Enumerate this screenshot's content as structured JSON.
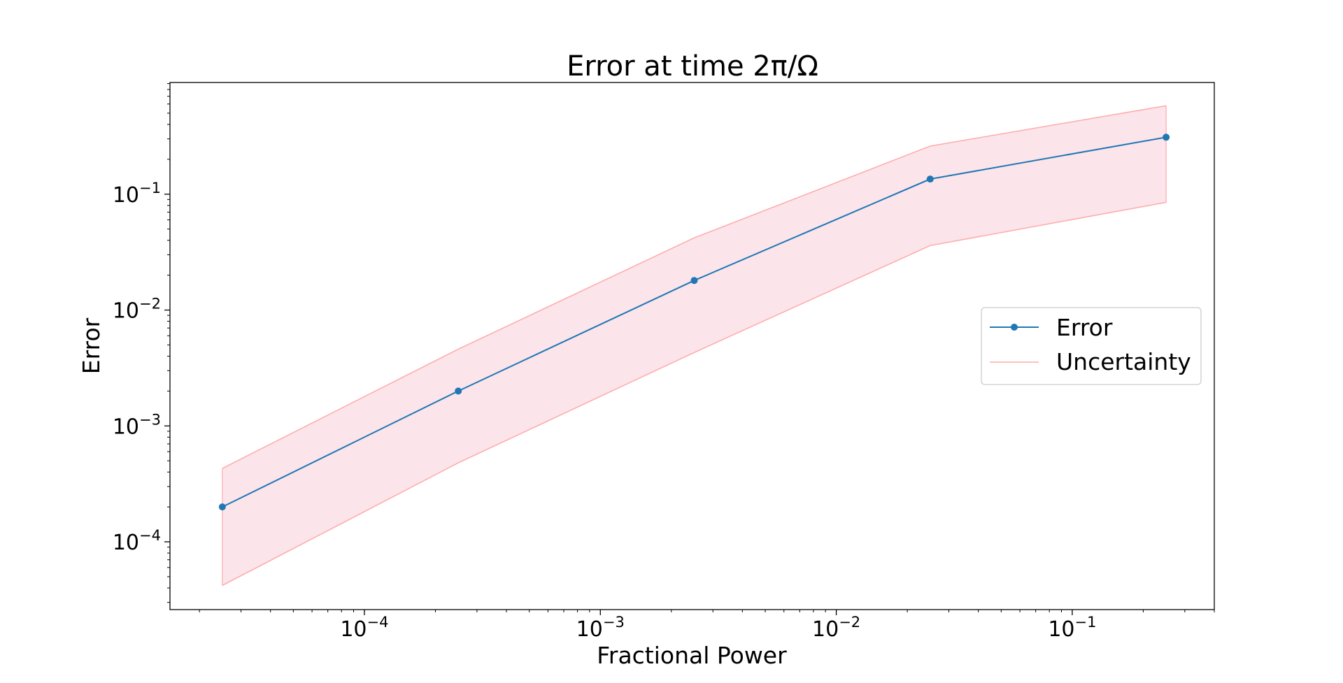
{
  "chart_data": {
    "type": "line",
    "title": "Error at time 2π/Ω",
    "xlabel": "Fractional Power",
    "ylabel": "Error",
    "xscale": "log",
    "yscale": "log",
    "xlim": [
      1.5e-05,
      0.4
    ],
    "ylim": [
      2.6e-05,
      0.92
    ],
    "x_ticks": [
      {
        "value": 0.0001,
        "base": "10",
        "exp": "−4"
      },
      {
        "value": 0.001,
        "base": "10",
        "exp": "−3"
      },
      {
        "value": 0.01,
        "base": "10",
        "exp": "−2"
      },
      {
        "value": 0.1,
        "base": "10",
        "exp": "−1"
      }
    ],
    "y_ticks": [
      {
        "value": 0.0001,
        "base": "10",
        "exp": "−4"
      },
      {
        "value": 0.001,
        "base": "10",
        "exp": "−3"
      },
      {
        "value": 0.01,
        "base": "10",
        "exp": "−2"
      },
      {
        "value": 0.1,
        "base": "10",
        "exp": "−1"
      }
    ],
    "x": [
      2.5e-05,
      0.00025,
      0.0025,
      0.025,
      0.25
    ],
    "series": [
      {
        "name": "Error",
        "values": [
          0.0002,
          0.002,
          0.018,
          0.135,
          0.31
        ],
        "color": "#1f77b4",
        "marker": "circle"
      }
    ],
    "band": {
      "name": "Uncertainty",
      "upper": [
        0.00043,
        0.0046,
        0.042,
        0.26,
        0.58
      ],
      "lower": [
        4.2e-05,
        0.00048,
        0.0043,
        0.036,
        0.085
      ],
      "edge_color": "#ffaaaa",
      "fill_color": "#fbe4ea"
    },
    "grid": false,
    "legend_position": "center-right"
  }
}
